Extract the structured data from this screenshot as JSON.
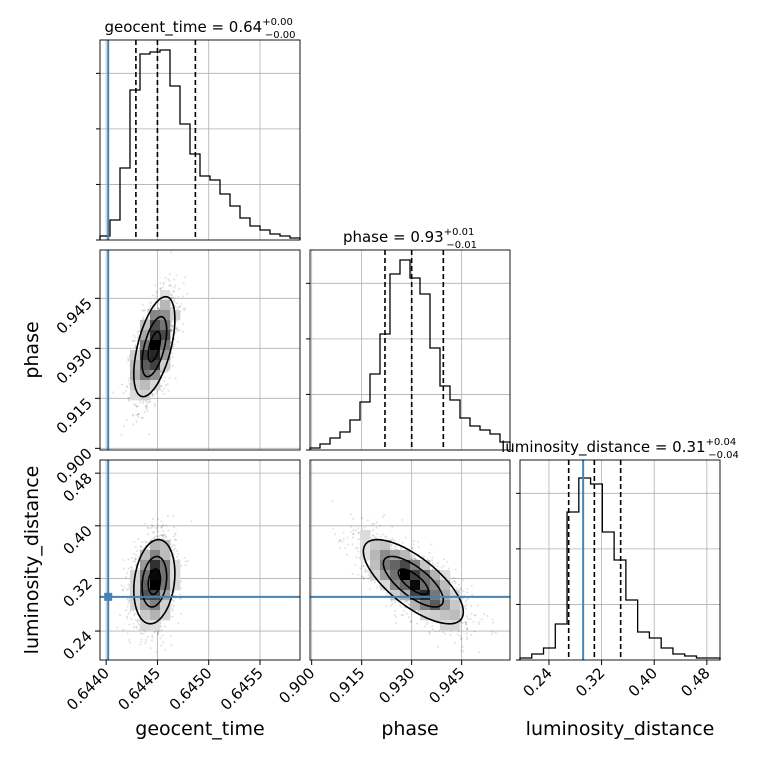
{
  "chart_data": {
    "type": "corner",
    "grid": true,
    "parameters": [
      "geocent_time",
      "phase",
      "luminosity_distance"
    ],
    "truths": {
      "geocent_time": 0.64402,
      "phase": null,
      "luminosity_distance": 0.292
    },
    "truth_color": "#4682b4",
    "axis_labels": {
      "x": [
        "geocent_time",
        "phase",
        "luminosity_distance"
      ],
      "y": [
        "phase",
        "luminosity_distance"
      ]
    },
    "titles": [
      {
        "param": "geocent_time",
        "text": "geocent_time = 0.64",
        "sup": "+0.00",
        "sub": "−0.00"
      },
      {
        "param": "phase",
        "text": "phase = 0.93",
        "sup": "+0.01",
        "sub": "−0.01"
      },
      {
        "param": "luminosity_distance",
        "text": "luminosity_distance = 0.31",
        "sup": "+0.04",
        "sub": "−0.04"
      }
    ],
    "ranges": {
      "geocent_time": [
        0.64394,
        0.64589
      ],
      "phase": [
        0.8995,
        0.9595
      ],
      "luminosity_distance": [
        0.196,
        0.5
      ]
    },
    "ticks": {
      "geocent_time": {
        "values": [
          0.644,
          0.6445,
          0.645,
          0.6455
        ],
        "labels": [
          "0.6440",
          "0.6445",
          "0.6450",
          "0.6455"
        ]
      },
      "phase": {
        "values": [
          0.9,
          0.915,
          0.93,
          0.945
        ],
        "labels": [
          "0.900",
          "0.915",
          "0.930",
          "0.945"
        ]
      },
      "luminosity_distance": {
        "values": [
          0.24,
          0.32,
          0.4,
          0.48
        ],
        "labels": [
          "0.24",
          "0.32",
          "0.40",
          "0.48"
        ]
      }
    },
    "quantiles": {
      "geocent_time": [
        0.64429,
        0.6445,
        0.64487
      ],
      "phase": [
        0.922,
        0.93,
        0.9395
      ],
      "luminosity_distance": [
        0.27,
        0.309,
        0.349
      ]
    },
    "histograms": {
      "geocent_time": [
        0.02,
        0.1,
        0.36,
        0.75,
        0.93,
        0.94,
        0.95,
        0.77,
        0.58,
        0.43,
        0.32,
        0.3,
        0.23,
        0.17,
        0.11,
        0.07,
        0.05,
        0.03,
        0.02,
        0.01
      ],
      "phase": [
        0.01,
        0.03,
        0.06,
        0.09,
        0.15,
        0.24,
        0.38,
        0.58,
        0.88,
        0.95,
        0.86,
        0.78,
        0.51,
        0.32,
        0.25,
        0.16,
        0.12,
        0.1,
        0.08,
        0.04
      ],
      "luminosity_distance": [
        0.01,
        0.03,
        0.06,
        0.18,
        0.74,
        0.91,
        0.88,
        0.64,
        0.5,
        0.3,
        0.14,
        0.11,
        0.06,
        0.03,
        0.02,
        0.01,
        0.01
      ]
    },
    "samples_2d": [
      {
        "x": "geocent_time",
        "y": "phase",
        "mean": [
          0.64447,
          0.9305
        ],
        "sd": [
          0.0001,
          0.0075
        ],
        "rho": 0.55,
        "n": 2200
      },
      {
        "x": "geocent_time",
        "y": "luminosity_distance",
        "mean": [
          0.64447,
          0.315
        ],
        "sd": [
          0.0001,
          0.032
        ],
        "rho": 0.2,
        "n": 2200
      },
      {
        "x": "phase",
        "y": "luminosity_distance",
        "mean": [
          0.9305,
          0.315
        ],
        "sd": [
          0.0075,
          0.032
        ],
        "rho": -0.72,
        "n": 2200
      }
    ]
  }
}
